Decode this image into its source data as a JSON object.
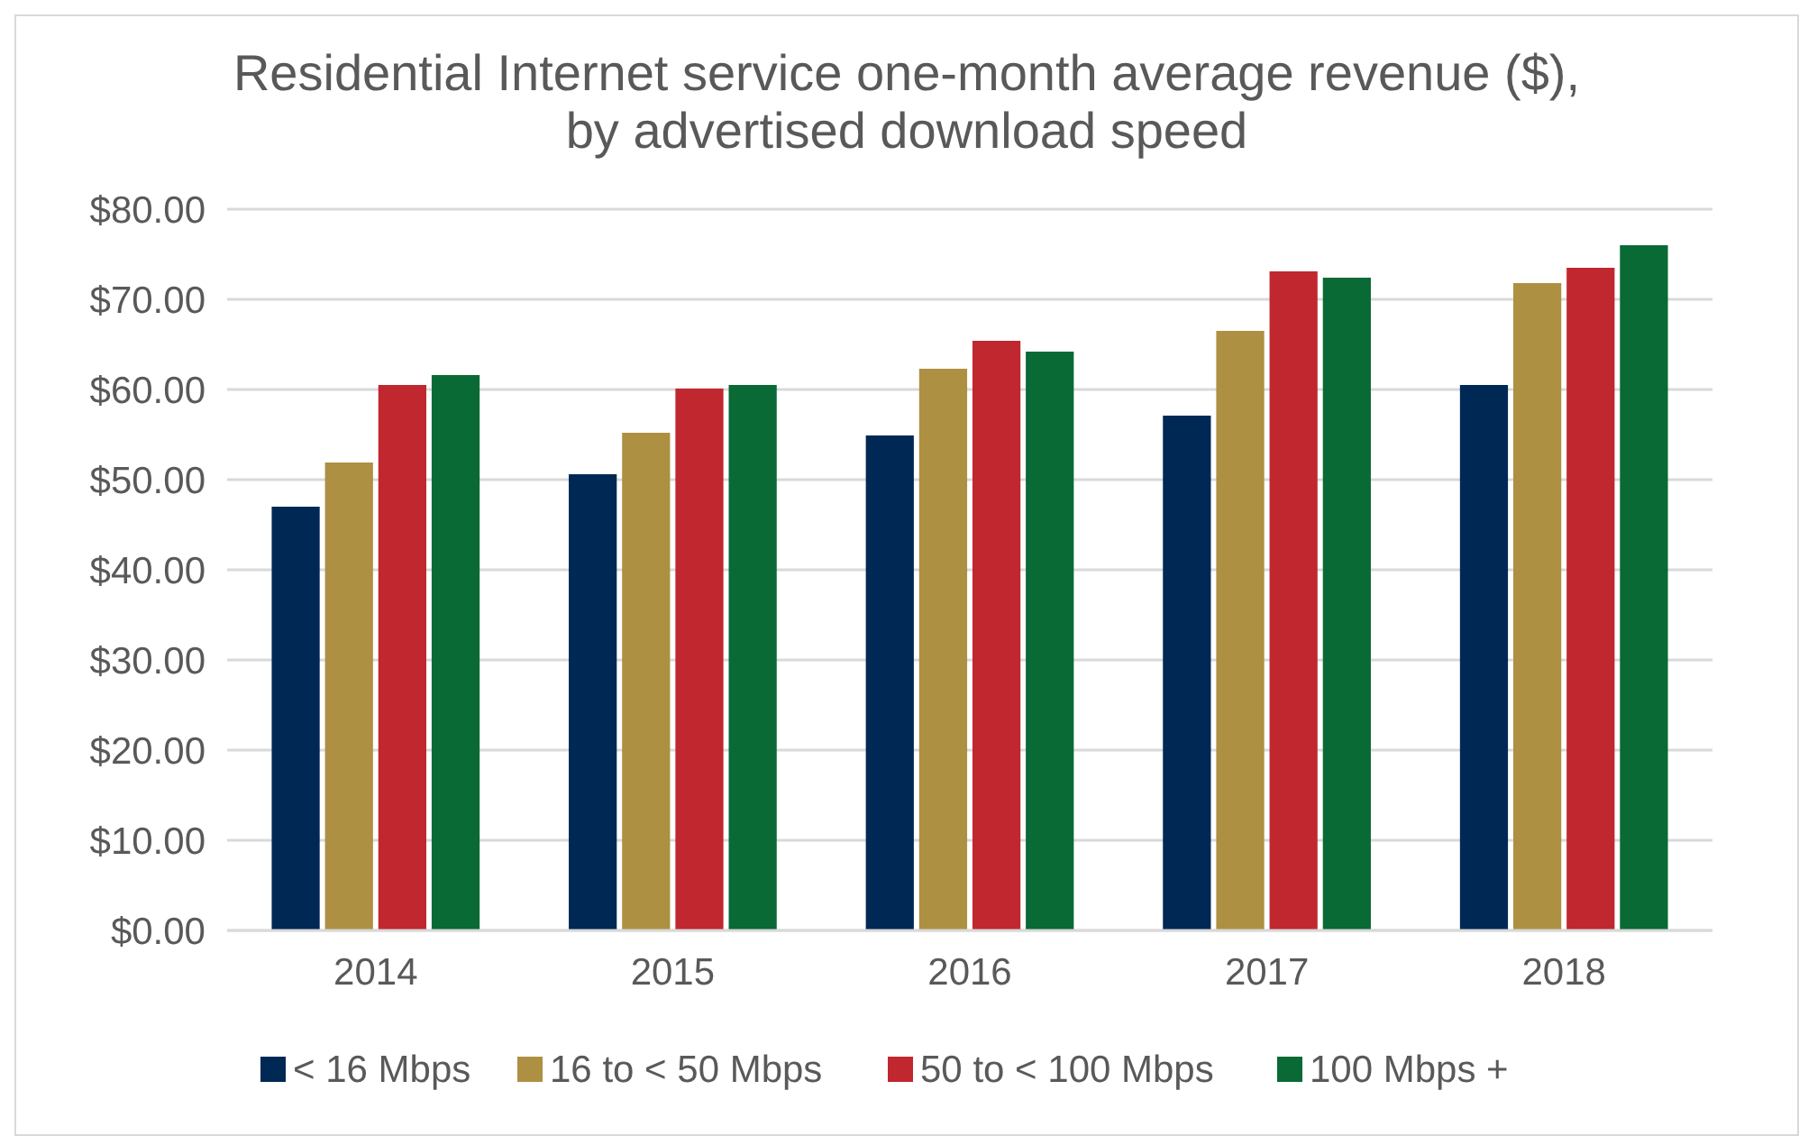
{
  "chart_data": {
    "type": "bar",
    "title": "Residential Internet service one-month average revenue ($), by advertised download speed",
    "categories": [
      "2014",
      "2015",
      "2016",
      "2017",
      "2018"
    ],
    "series": [
      {
        "name": "< 16 Mbps",
        "color": "#002855",
        "values": [
          47.0,
          50.6,
          54.9,
          57.1,
          60.5
        ]
      },
      {
        "name": "16 to < 50 Mbps",
        "color": "#ad9042",
        "values": [
          51.9,
          55.2,
          62.3,
          66.5,
          71.8
        ]
      },
      {
        "name": "50 to < 100 Mbps",
        "color": "#c1272f",
        "values": [
          60.5,
          60.1,
          65.4,
          73.1,
          73.5
        ]
      },
      {
        "name": "100 Mbps +",
        "color": "#096a35",
        "values": [
          61.6,
          60.5,
          64.2,
          72.4,
          76.0
        ]
      }
    ],
    "ylim": [
      0,
      80
    ],
    "yticks": [
      {
        "value": 0,
        "label": "$0.00"
      },
      {
        "value": 10,
        "label": "$10.00"
      },
      {
        "value": 20,
        "label": "$20.00"
      },
      {
        "value": 30,
        "label": "$30.00"
      },
      {
        "value": 40,
        "label": "$40.00"
      },
      {
        "value": 50,
        "label": "$50.00"
      },
      {
        "value": 60,
        "label": "$60.00"
      },
      {
        "value": 70,
        "label": "$70.00"
      },
      {
        "value": 80,
        "label": "$80.00"
      }
    ],
    "grid": "y",
    "legend": "bottom"
  }
}
